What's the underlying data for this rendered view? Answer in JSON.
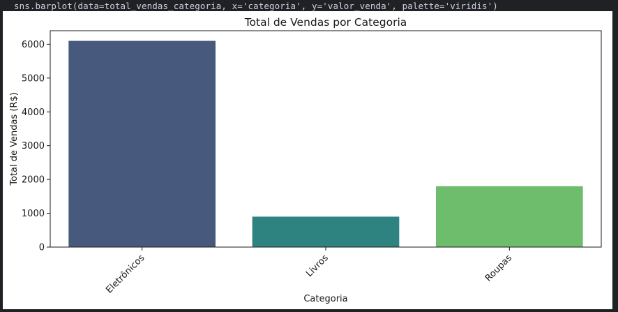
{
  "cell": {
    "code": "sns.barplot(data=total_vendas_categoria, x='categoria', y='valor_venda', palette='viridis')"
  },
  "chart_data": {
    "type": "bar",
    "title": "Total de Vendas por Categoria",
    "xlabel": "Categoria",
    "ylabel": "Total de Vendas (R$)",
    "categories": [
      "Eletrônicos",
      "Livros",
      "Roupas"
    ],
    "values": [
      6100,
      900,
      1800
    ],
    "colors": [
      "#48597e",
      "#2e8280",
      "#6dbd6c"
    ],
    "ylim": [
      0,
      6400
    ],
    "yticks": [
      0,
      1000,
      2000,
      3000,
      4000,
      5000,
      6000
    ],
    "ytick_labels": [
      "0",
      "1000",
      "2000",
      "3000",
      "4000",
      "5000",
      "6000"
    ],
    "xtick_rotation": 45,
    "grid": false,
    "legend": "none"
  }
}
